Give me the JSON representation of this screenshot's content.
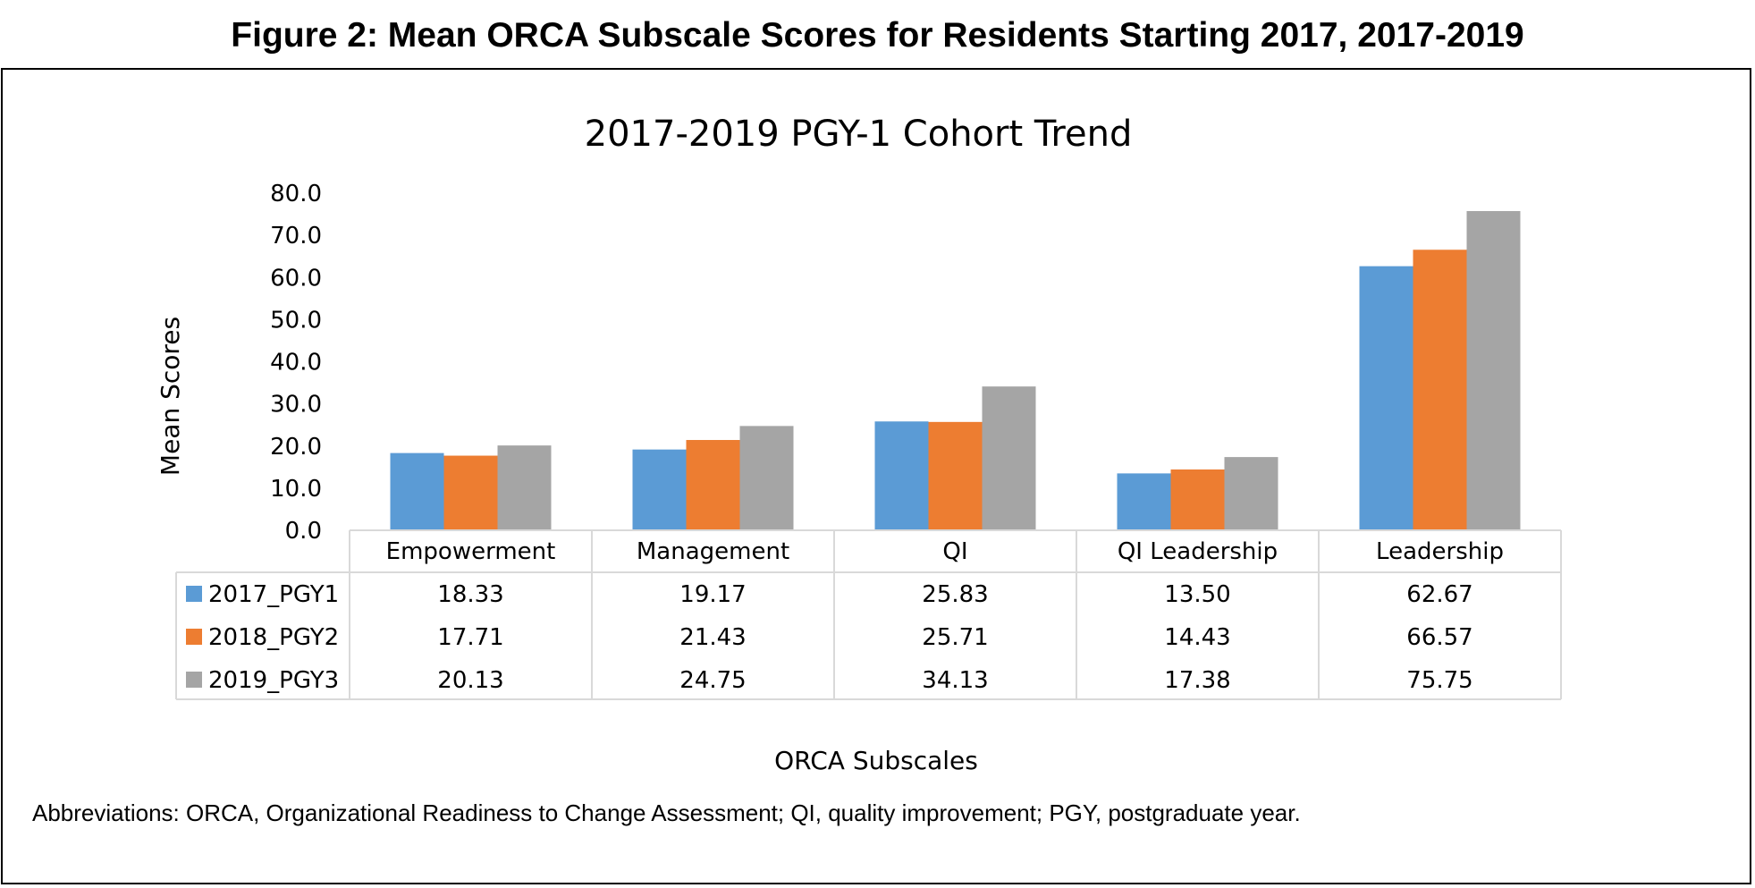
{
  "figure": {
    "heading": "Figure 2: Mean ORCA Subscale Scores for Residents Starting 2017, 2017-2019",
    "note": "Abbreviations: ORCA, Organizational Readiness to Change Assessment; QI, quality improvement; PGY, postgraduate year."
  },
  "chart_data": {
    "type": "bar",
    "title": "2017-2019 PGY-1 Cohort Trend",
    "xlabel": "ORCA Subscales",
    "ylabel": "Mean Scores",
    "ylim": [
      0,
      80
    ],
    "ytick_step": 10,
    "ytick_decimals": 1,
    "grid": false,
    "legend": "data-table-left",
    "categories": [
      "Empowerment",
      "Management",
      "QI",
      "QI Leadership",
      "Leadership"
    ],
    "series": [
      {
        "name": "2017_PGY1",
        "color": "#5B9BD5",
        "values": [
          18.33,
          19.17,
          25.83,
          13.5,
          62.67
        ],
        "labels": [
          "18.33",
          "19.17",
          "25.83",
          "13.50",
          "62.67"
        ]
      },
      {
        "name": "2018_PGY2",
        "color": "#ED7D31",
        "values": [
          17.71,
          21.43,
          25.71,
          14.43,
          66.57
        ],
        "labels": [
          "17.71",
          "21.43",
          "25.71",
          "14.43",
          "66.57"
        ]
      },
      {
        "name": "2019_PGY3",
        "color": "#A5A5A5",
        "values": [
          20.13,
          24.75,
          34.13,
          17.38,
          75.75
        ],
        "labels": [
          "20.13",
          "24.75",
          "34.13",
          "17.38",
          "75.75"
        ]
      }
    ]
  }
}
